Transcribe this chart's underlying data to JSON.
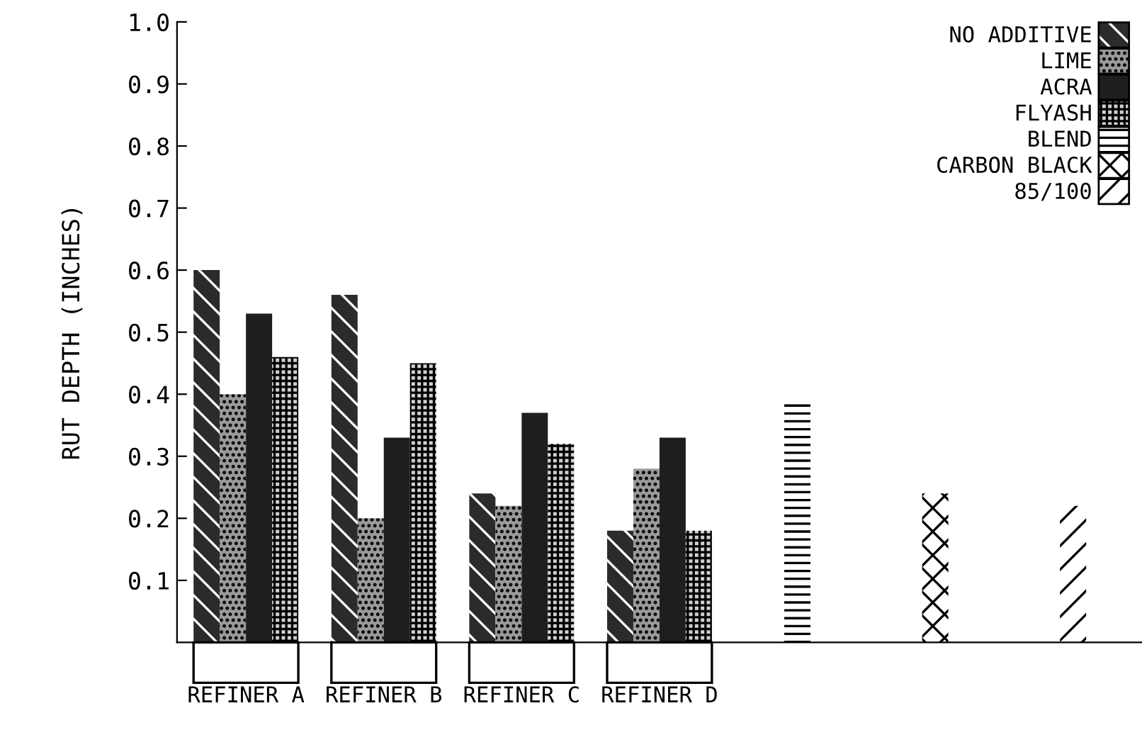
{
  "chart_data": {
    "type": "bar",
    "ylabel": "RUT DEPTH (INCHES)",
    "categories": [
      "REFINER A",
      "REFINER B",
      "REFINER C",
      "REFINER D",
      null,
      null,
      null
    ],
    "series": [
      {
        "name": "NO ADDITIVE",
        "color": "#2b2b2b",
        "values": [
          0.6,
          0.56,
          0.24,
          0.18,
          null,
          null,
          null
        ]
      },
      {
        "name": "LIME",
        "color": "#9a9a9a",
        "values": [
          0.4,
          0.2,
          0.22,
          0.28,
          null,
          null,
          null
        ]
      },
      {
        "name": "ACRA",
        "color": "#1e1e1e",
        "values": [
          0.53,
          0.33,
          0.37,
          0.33,
          null,
          null,
          null
        ]
      },
      {
        "name": "FLYASH",
        "color": "#d0d0d0",
        "values": [
          0.46,
          0.45,
          0.32,
          0.18,
          null,
          null,
          null
        ]
      },
      {
        "name": "BLEND",
        "color": "#ffffff",
        "values": [
          null,
          null,
          null,
          null,
          0.39,
          null,
          null
        ]
      },
      {
        "name": "CARBON BLACK",
        "color": "#ffffff",
        "values": [
          null,
          null,
          null,
          null,
          null,
          0.24,
          null
        ]
      },
      {
        "name": "85/100",
        "color": "#ffffff",
        "values": [
          null,
          null,
          null,
          null,
          null,
          null,
          0.22
        ]
      }
    ],
    "ylim": [
      0,
      1.0
    ],
    "yticks": [
      0.1,
      0.2,
      0.3,
      0.4,
      0.5,
      0.6,
      0.7,
      0.8,
      0.9,
      {
        "value": 1.0,
        "label": "1.0"
      }
    ],
    "legend": "top right",
    "grid": false
  }
}
